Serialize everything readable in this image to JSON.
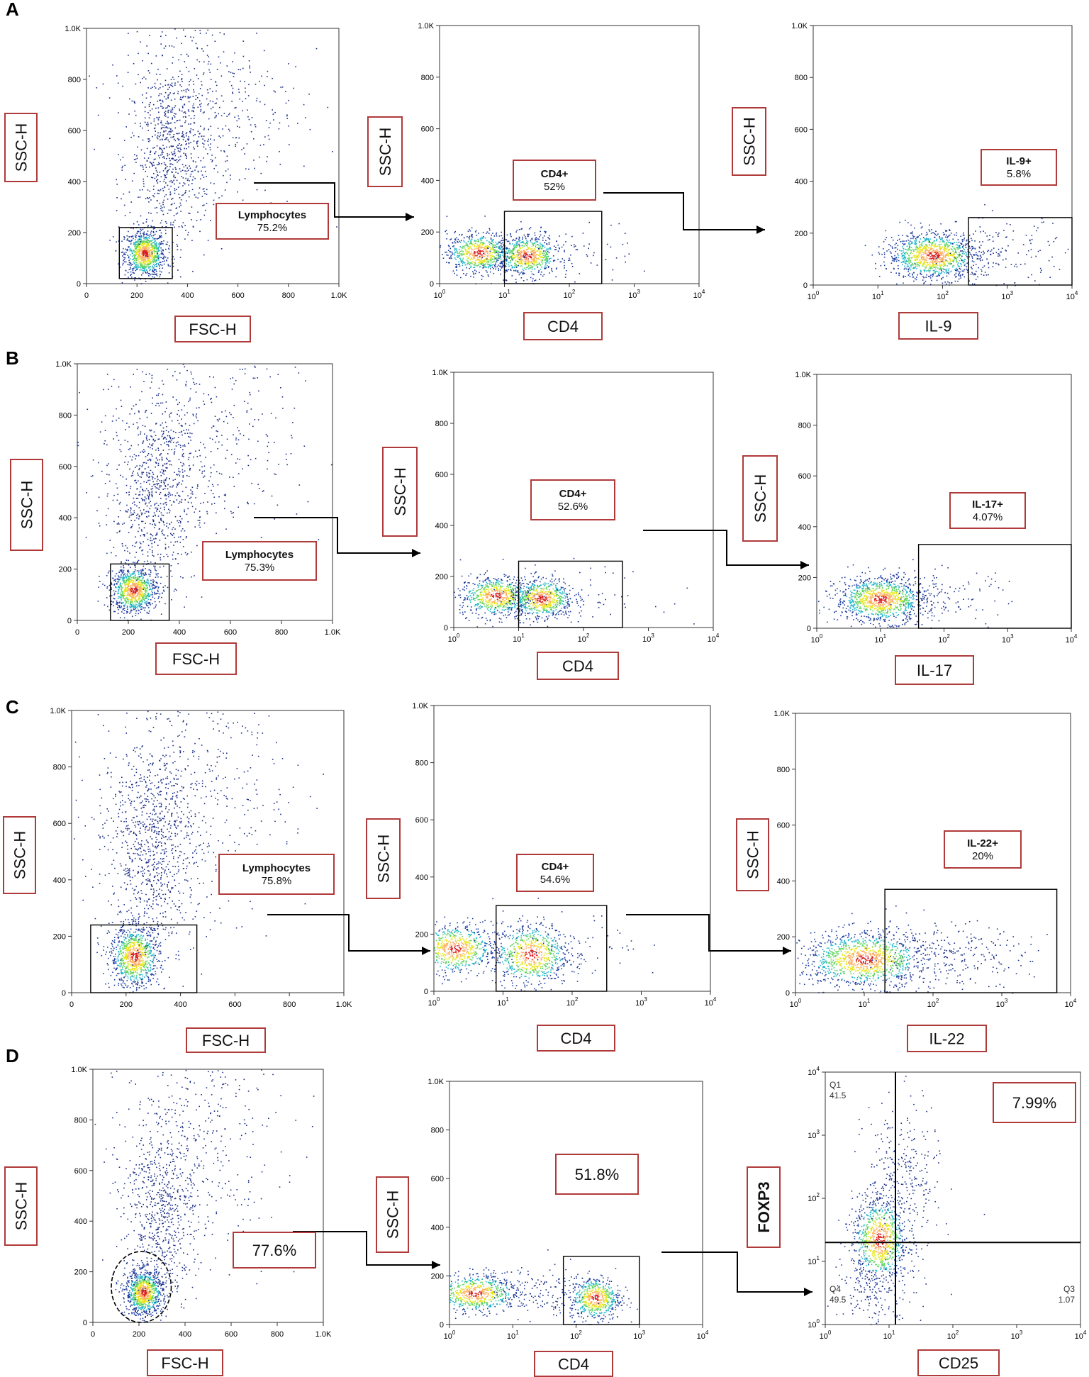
{
  "panels": [
    {
      "letter": "A",
      "plots": [
        {
          "type": "scatter",
          "xscale": "linear",
          "xlim": [
            0,
            1000
          ],
          "ylim": [
            0,
            1000
          ],
          "xticks": [
            "0",
            "200",
            "400",
            "600",
            "800",
            "1.0K"
          ],
          "yticks": [
            "0",
            "200",
            "400",
            "600",
            "800",
            "1.0K"
          ],
          "xlabel": "FSC-H",
          "ylabel": "SSC-H",
          "gate": {
            "shape": "rect",
            "x": [
              130,
              340
            ],
            "y": [
              20,
              220
            ]
          },
          "gate_label": [
            "Lymphocytes",
            "75.2%"
          ]
        },
        {
          "type": "scatter",
          "xscale": "log",
          "xlim": [
            0,
            4
          ],
          "ylim": [
            0,
            1000
          ],
          "xticks": [
            "10^0",
            "10^1",
            "10^2",
            "10^3",
            "10^4"
          ],
          "yticks": [
            "0",
            "200",
            "400",
            "600",
            "800",
            "1.0K"
          ],
          "xlabel": "CD4",
          "ylabel": "SSC-H",
          "gate": {
            "shape": "rect",
            "x": [
              1.0,
              2.5
            ],
            "y": [
              0,
              280
            ]
          },
          "gate_label": [
            "CD4+",
            "52%"
          ]
        },
        {
          "type": "scatter",
          "xscale": "log",
          "xlim": [
            0,
            4
          ],
          "ylim": [
            0,
            1000
          ],
          "xticks": [
            "10^0",
            "10^1",
            "10^2",
            "10^3",
            "10^4"
          ],
          "yticks": [
            "0",
            "200",
            "400",
            "600",
            "800",
            "1.0K"
          ],
          "xlabel": "IL-9",
          "ylabel": "SSC-H",
          "gate": {
            "shape": "rect",
            "x": [
              2.4,
              4
            ],
            "y": [
              0,
              260
            ]
          },
          "gate_label": [
            "IL-9+",
            "5.8%"
          ]
        }
      ]
    },
    {
      "letter": "B",
      "plots": [
        {
          "type": "scatter",
          "xscale": "linear",
          "xlim": [
            0,
            1000
          ],
          "ylim": [
            0,
            1000
          ],
          "xticks": [
            "0",
            "200",
            "400",
            "600",
            "800",
            "1.0K"
          ],
          "yticks": [
            "0",
            "200",
            "400",
            "600",
            "800",
            "1.0K"
          ],
          "xlabel": "FSC-H",
          "ylabel": "SSC-H",
          "gate": {
            "shape": "rect",
            "x": [
              130,
              360
            ],
            "y": [
              0,
              220
            ]
          },
          "gate_label": [
            "Lymphocytes",
            "75.3%"
          ]
        },
        {
          "type": "scatter",
          "xscale": "log",
          "xlim": [
            0,
            4
          ],
          "ylim": [
            0,
            1000
          ],
          "xticks": [
            "10^0",
            "10^1",
            "10^2",
            "10^3",
            "10^4"
          ],
          "yticks": [
            "0",
            "200",
            "400",
            "600",
            "800",
            "1.0K"
          ],
          "xlabel": "CD4",
          "ylabel": "SSC-H",
          "gate": {
            "shape": "rect",
            "x": [
              1.0,
              2.6
            ],
            "y": [
              0,
              260
            ]
          },
          "gate_label": [
            "CD4+",
            "52.6%"
          ]
        },
        {
          "type": "scatter",
          "xscale": "log",
          "xlim": [
            0,
            4
          ],
          "ylim": [
            0,
            1000
          ],
          "xticks": [
            "10^0",
            "10^1",
            "10^2",
            "10^3",
            "10^4"
          ],
          "yticks": [
            "0",
            "200",
            "400",
            "600",
            "800",
            "1.0K"
          ],
          "xlabel": "IL-17",
          "ylabel": "SSC-H",
          "gate": {
            "shape": "rect",
            "x": [
              1.6,
              4
            ],
            "y": [
              0,
              330
            ]
          },
          "gate_label": [
            "IL-17+",
            "4.07%"
          ]
        }
      ]
    },
    {
      "letter": "C",
      "plots": [
        {
          "type": "scatter",
          "xscale": "linear",
          "xlim": [
            0,
            1000
          ],
          "ylim": [
            0,
            1000
          ],
          "xticks": [
            "0",
            "200",
            "400",
            "600",
            "800",
            "1.0K"
          ],
          "yticks": [
            "0",
            "200",
            "400",
            "600",
            "800",
            "1.0K"
          ],
          "xlabel": "FSC-H",
          "ylabel": "SSC-H",
          "gate": {
            "shape": "rect",
            "x": [
              70,
              460
            ],
            "y": [
              0,
              240
            ]
          },
          "gate_label": [
            "Lymphocytes",
            "75.8%"
          ]
        },
        {
          "type": "scatter",
          "xscale": "log",
          "xlim": [
            0,
            4
          ],
          "ylim": [
            0,
            1000
          ],
          "xticks": [
            "10^0",
            "10^1",
            "10^2",
            "10^3",
            "10^4"
          ],
          "yticks": [
            "0",
            "200",
            "400",
            "600",
            "800",
            "1.0K"
          ],
          "xlabel": "CD4",
          "ylabel": "SSC-H",
          "gate": {
            "shape": "rect",
            "x": [
              0.9,
              2.5
            ],
            "y": [
              0,
              300
            ]
          },
          "gate_label": [
            "CD4+",
            "54.6%"
          ]
        },
        {
          "type": "scatter",
          "xscale": "log",
          "xlim": [
            0,
            4
          ],
          "ylim": [
            0,
            1000
          ],
          "xticks": [
            "10^0",
            "10^1",
            "10^2",
            "10^3",
            "10^4"
          ],
          "yticks": [
            "0",
            "200",
            "400",
            "600",
            "800",
            "1.0K"
          ],
          "xlabel": "IL-22",
          "ylabel": "SSC-H",
          "gate": {
            "shape": "rect",
            "x": [
              1.3,
              3.8
            ],
            "y": [
              0,
              370
            ]
          },
          "gate_label": [
            "IL-22+",
            "20%"
          ]
        }
      ]
    },
    {
      "letter": "D",
      "plots": [
        {
          "type": "scatter",
          "xscale": "linear",
          "xlim": [
            0,
            1000
          ],
          "ylim": [
            0,
            1000
          ],
          "xticks": [
            "0",
            "200",
            "400",
            "600",
            "800",
            "1.0K"
          ],
          "yticks": [
            "0",
            "200",
            "400",
            "600",
            "800",
            "1.0K"
          ],
          "xlabel": "FSC-H",
          "ylabel": "SSC-H",
          "gate": {
            "shape": "ellipse",
            "x": [
              80,
              340
            ],
            "y": [
              -10,
              280
            ]
          },
          "gate_label": [
            "77.6%"
          ]
        },
        {
          "type": "scatter",
          "xscale": "log",
          "xlim": [
            0,
            4
          ],
          "ylim": [
            0,
            1000
          ],
          "xticks": [
            "10^0",
            "10^1",
            "10^2",
            "10^3",
            "10^4"
          ],
          "yticks": [
            "0",
            "200",
            "400",
            "600",
            "800",
            "1.0K"
          ],
          "xlabel": "CD4",
          "ylabel": "SSC-H",
          "gate": {
            "shape": "rect",
            "x": [
              1.8,
              3.0
            ],
            "y": [
              0,
              280
            ]
          },
          "gate_label": [
            "51.8%"
          ]
        },
        {
          "type": "quadrant",
          "xscale": "log",
          "yscale": "log",
          "xlim": [
            0,
            4
          ],
          "ylim": [
            0,
            4
          ],
          "xticks": [
            "10^0",
            "10^1",
            "10^2",
            "10^3",
            "10^4"
          ],
          "yticks": [
            "10^0",
            "10^1",
            "10^2",
            "10^3",
            "10^4"
          ],
          "xlabel": "CD25",
          "ylabel": "FOXP3",
          "split": {
            "x": 1.1,
            "y": 1.3
          },
          "quadrants": {
            "Q1": {
              "name": "Q1",
              "value": "41.5"
            },
            "Q3": {
              "name": "Q3",
              "value": "1.07"
            },
            "Q4": {
              "name": "Q4",
              "value": "49.5"
            }
          },
          "gate_label": [
            "7.99%"
          ]
        }
      ]
    }
  ]
}
